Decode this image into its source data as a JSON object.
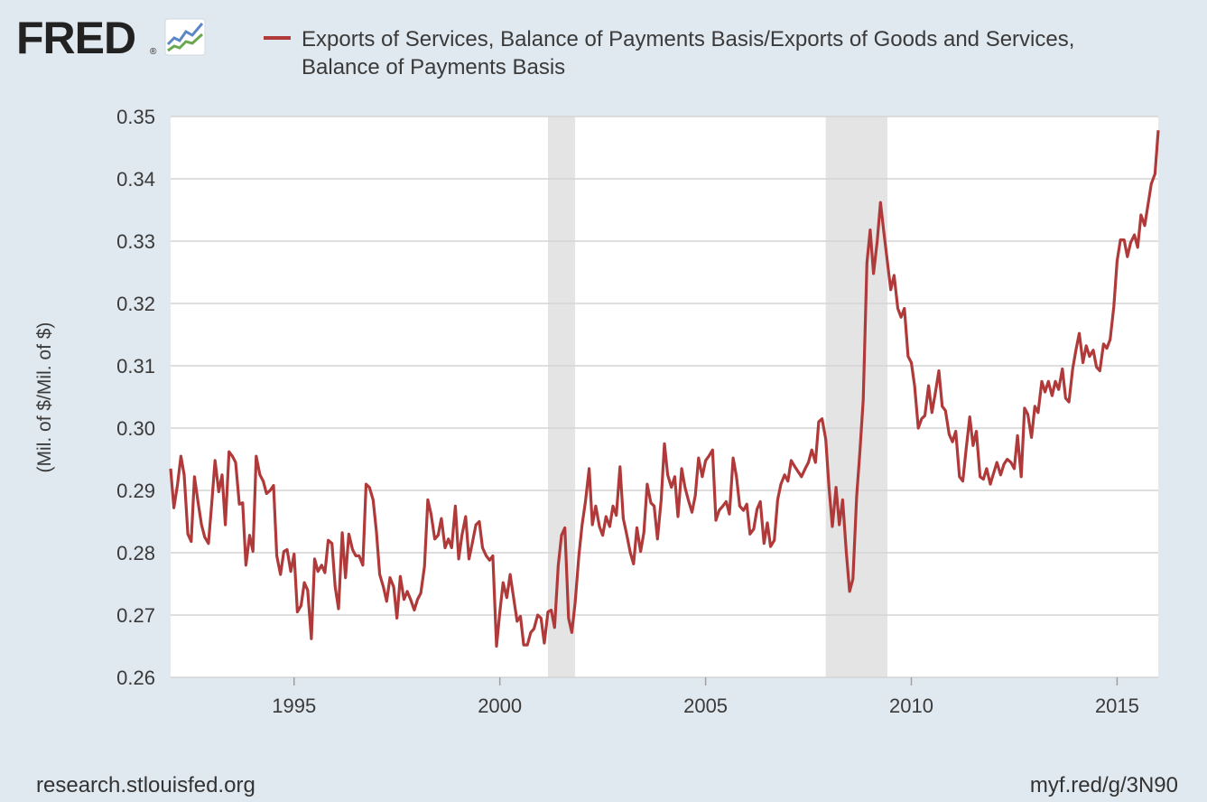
{
  "logo": {
    "text": "FRED",
    "registered": "®"
  },
  "footer": {
    "left": "research.stlouisfed.org",
    "right": "myf.red/g/3N90"
  },
  "colors": {
    "background": "#e1e9f0",
    "plot": "#ffffff",
    "line": "#b03a3a",
    "grid": "#d4d4d4",
    "recession": "#e4e4e4"
  },
  "chart_data": {
    "type": "line",
    "legend": {
      "line1": "Exports of Services, Balance of Payments Basis/Exports of Goods and Services,",
      "line2": "Balance of Payments Basis"
    },
    "ylabel": "(Mil. of $/Mil. of $)",
    "xlabel": "",
    "ylim": [
      0.26,
      0.35
    ],
    "xlim": [
      1992.0,
      2016.0
    ],
    "yticks": [
      "0.26",
      "0.27",
      "0.28",
      "0.29",
      "0.30",
      "0.31",
      "0.32",
      "0.33",
      "0.34",
      "0.35"
    ],
    "xticks": [
      "1995",
      "2000",
      "2005",
      "2010",
      "2015"
    ],
    "recessions": [
      [
        2001.17,
        2001.83
      ],
      [
        2007.92,
        2009.42
      ]
    ],
    "series": [
      {
        "name": "Exports of Services / Exports of Goods and Services",
        "points": [
          [
            1992.0,
            0.2935
          ],
          [
            1992.08,
            0.2872
          ],
          [
            1992.17,
            0.291
          ],
          [
            1992.25,
            0.2955
          ],
          [
            1992.33,
            0.2925
          ],
          [
            1992.42,
            0.283
          ],
          [
            1992.5,
            0.2818
          ],
          [
            1992.58,
            0.2922
          ],
          [
            1992.67,
            0.288
          ],
          [
            1992.75,
            0.2845
          ],
          [
            1992.83,
            0.2825
          ],
          [
            1992.92,
            0.2815
          ],
          [
            1993.0,
            0.288
          ],
          [
            1993.08,
            0.2948
          ],
          [
            1993.17,
            0.2898
          ],
          [
            1993.25,
            0.2925
          ],
          [
            1993.33,
            0.2845
          ],
          [
            1993.42,
            0.2962
          ],
          [
            1993.5,
            0.2955
          ],
          [
            1993.58,
            0.2945
          ],
          [
            1993.67,
            0.2878
          ],
          [
            1993.75,
            0.288
          ],
          [
            1993.83,
            0.278
          ],
          [
            1993.92,
            0.2828
          ],
          [
            1994.0,
            0.2802
          ],
          [
            1994.08,
            0.2955
          ],
          [
            1994.17,
            0.2925
          ],
          [
            1994.25,
            0.2915
          ],
          [
            1994.33,
            0.2895
          ],
          [
            1994.42,
            0.29
          ],
          [
            1994.5,
            0.2908
          ],
          [
            1994.58,
            0.2795
          ],
          [
            1994.67,
            0.2765
          ],
          [
            1994.75,
            0.2802
          ],
          [
            1994.83,
            0.2805
          ],
          [
            1994.92,
            0.277
          ],
          [
            1995.0,
            0.2798
          ],
          [
            1995.08,
            0.2705
          ],
          [
            1995.17,
            0.2715
          ],
          [
            1995.25,
            0.2752
          ],
          [
            1995.33,
            0.274
          ],
          [
            1995.42,
            0.2662
          ],
          [
            1995.5,
            0.279
          ],
          [
            1995.58,
            0.277
          ],
          [
            1995.67,
            0.278
          ],
          [
            1995.75,
            0.2768
          ],
          [
            1995.83,
            0.282
          ],
          [
            1995.92,
            0.2815
          ],
          [
            1996.0,
            0.2745
          ],
          [
            1996.08,
            0.271
          ],
          [
            1996.17,
            0.2832
          ],
          [
            1996.25,
            0.276
          ],
          [
            1996.33,
            0.283
          ],
          [
            1996.42,
            0.2805
          ],
          [
            1996.5,
            0.2795
          ],
          [
            1996.58,
            0.2795
          ],
          [
            1996.67,
            0.278
          ],
          [
            1996.75,
            0.291
          ],
          [
            1996.83,
            0.2905
          ],
          [
            1996.92,
            0.2885
          ],
          [
            1997.0,
            0.2835
          ],
          [
            1997.08,
            0.2765
          ],
          [
            1997.17,
            0.2745
          ],
          [
            1997.25,
            0.2722
          ],
          [
            1997.33,
            0.276
          ],
          [
            1997.42,
            0.2745
          ],
          [
            1997.5,
            0.2695
          ],
          [
            1997.58,
            0.2762
          ],
          [
            1997.67,
            0.2725
          ],
          [
            1997.75,
            0.2738
          ],
          [
            1997.83,
            0.2725
          ],
          [
            1997.92,
            0.2708
          ],
          [
            1998.0,
            0.2725
          ],
          [
            1998.08,
            0.2735
          ],
          [
            1998.17,
            0.2778
          ],
          [
            1998.25,
            0.2885
          ],
          [
            1998.33,
            0.2862
          ],
          [
            1998.42,
            0.2822
          ],
          [
            1998.5,
            0.2828
          ],
          [
            1998.58,
            0.2855
          ],
          [
            1998.67,
            0.2808
          ],
          [
            1998.75,
            0.2822
          ],
          [
            1998.83,
            0.2808
          ],
          [
            1998.92,
            0.2875
          ],
          [
            1999.0,
            0.279
          ],
          [
            1999.08,
            0.2828
          ],
          [
            1999.17,
            0.2858
          ],
          [
            1999.25,
            0.279
          ],
          [
            1999.33,
            0.2815
          ],
          [
            1999.42,
            0.2845
          ],
          [
            1999.5,
            0.285
          ],
          [
            1999.58,
            0.2808
          ],
          [
            1999.67,
            0.2795
          ],
          [
            1999.75,
            0.2788
          ],
          [
            1999.83,
            0.2795
          ],
          [
            1999.92,
            0.265
          ],
          [
            2000.0,
            0.2705
          ],
          [
            2000.08,
            0.2752
          ],
          [
            2000.17,
            0.2728
          ],
          [
            2000.25,
            0.2765
          ],
          [
            2000.33,
            0.273
          ],
          [
            2000.42,
            0.269
          ],
          [
            2000.5,
            0.2698
          ],
          [
            2000.58,
            0.2652
          ],
          [
            2000.67,
            0.2652
          ],
          [
            2000.75,
            0.2672
          ],
          [
            2000.83,
            0.2678
          ],
          [
            2000.92,
            0.27
          ],
          [
            2001.0,
            0.2695
          ],
          [
            2001.08,
            0.2655
          ],
          [
            2001.17,
            0.2705
          ],
          [
            2001.25,
            0.2708
          ],
          [
            2001.33,
            0.268
          ],
          [
            2001.42,
            0.278
          ],
          [
            2001.5,
            0.2828
          ],
          [
            2001.58,
            0.284
          ],
          [
            2001.67,
            0.2695
          ],
          [
            2001.75,
            0.2672
          ],
          [
            2001.83,
            0.272
          ],
          [
            2001.92,
            0.2795
          ],
          [
            2002.0,
            0.2845
          ],
          [
            2002.08,
            0.2882
          ],
          [
            2002.17,
            0.2935
          ],
          [
            2002.25,
            0.2845
          ],
          [
            2002.33,
            0.2875
          ],
          [
            2002.42,
            0.2842
          ],
          [
            2002.5,
            0.2828
          ],
          [
            2002.58,
            0.2858
          ],
          [
            2002.67,
            0.2842
          ],
          [
            2002.75,
            0.2875
          ],
          [
            2002.83,
            0.286
          ],
          [
            2002.92,
            0.2938
          ],
          [
            2003.0,
            0.2855
          ],
          [
            2003.08,
            0.283
          ],
          [
            2003.17,
            0.28
          ],
          [
            2003.25,
            0.2782
          ],
          [
            2003.33,
            0.284
          ],
          [
            2003.42,
            0.2802
          ],
          [
            2003.5,
            0.2832
          ],
          [
            2003.58,
            0.291
          ],
          [
            2003.67,
            0.288
          ],
          [
            2003.75,
            0.2875
          ],
          [
            2003.83,
            0.2822
          ],
          [
            2003.92,
            0.2885
          ],
          [
            2004.0,
            0.2975
          ],
          [
            2004.08,
            0.2925
          ],
          [
            2004.17,
            0.2905
          ],
          [
            2004.25,
            0.2922
          ],
          [
            2004.33,
            0.2858
          ],
          [
            2004.42,
            0.2935
          ],
          [
            2004.5,
            0.2905
          ],
          [
            2004.58,
            0.2885
          ],
          [
            2004.67,
            0.2865
          ],
          [
            2004.75,
            0.2892
          ],
          [
            2004.83,
            0.2952
          ],
          [
            2004.92,
            0.2922
          ],
          [
            2005.0,
            0.2948
          ],
          [
            2005.08,
            0.2955
          ],
          [
            2005.17,
            0.2965
          ],
          [
            2005.25,
            0.2852
          ],
          [
            2005.33,
            0.2868
          ],
          [
            2005.42,
            0.2875
          ],
          [
            2005.5,
            0.2882
          ],
          [
            2005.58,
            0.2862
          ],
          [
            2005.67,
            0.2952
          ],
          [
            2005.75,
            0.2922
          ],
          [
            2005.83,
            0.2875
          ],
          [
            2005.92,
            0.2868
          ],
          [
            2006.0,
            0.2878
          ],
          [
            2006.08,
            0.283
          ],
          [
            2006.17,
            0.2838
          ],
          [
            2006.25,
            0.287
          ],
          [
            2006.33,
            0.2882
          ],
          [
            2006.42,
            0.2815
          ],
          [
            2006.5,
            0.2848
          ],
          [
            2006.58,
            0.281
          ],
          [
            2006.67,
            0.282
          ],
          [
            2006.75,
            0.2885
          ],
          [
            2006.83,
            0.291
          ],
          [
            2006.92,
            0.2925
          ],
          [
            2007.0,
            0.2915
          ],
          [
            2007.08,
            0.2948
          ],
          [
            2007.17,
            0.2938
          ],
          [
            2007.25,
            0.293
          ],
          [
            2007.33,
            0.2922
          ],
          [
            2007.42,
            0.2935
          ],
          [
            2007.5,
            0.2945
          ],
          [
            2007.58,
            0.2965
          ],
          [
            2007.67,
            0.2945
          ],
          [
            2007.75,
            0.301
          ],
          [
            2007.83,
            0.3015
          ],
          [
            2007.92,
            0.2982
          ],
          [
            2008.0,
            0.2905
          ],
          [
            2008.08,
            0.2842
          ],
          [
            2008.17,
            0.2905
          ],
          [
            2008.25,
            0.2845
          ],
          [
            2008.33,
            0.2885
          ],
          [
            2008.42,
            0.28
          ],
          [
            2008.5,
            0.2738
          ],
          [
            2008.58,
            0.2758
          ],
          [
            2008.67,
            0.289
          ],
          [
            2008.75,
            0.2962
          ],
          [
            2008.83,
            0.3045
          ],
          [
            2008.92,
            0.3265
          ],
          [
            2009.0,
            0.3318
          ],
          [
            2009.08,
            0.3248
          ],
          [
            2009.17,
            0.33
          ],
          [
            2009.25,
            0.3362
          ],
          [
            2009.33,
            0.3315
          ],
          [
            2009.42,
            0.3265
          ],
          [
            2009.5,
            0.3222
          ],
          [
            2009.58,
            0.3245
          ],
          [
            2009.67,
            0.3192
          ],
          [
            2009.75,
            0.3178
          ],
          [
            2009.83,
            0.3192
          ],
          [
            2009.92,
            0.3115
          ],
          [
            2010.0,
            0.3105
          ],
          [
            2010.08,
            0.3068
          ],
          [
            2010.17,
            0.3
          ],
          [
            2010.25,
            0.3015
          ],
          [
            2010.33,
            0.302
          ],
          [
            2010.42,
            0.3068
          ],
          [
            2010.5,
            0.3025
          ],
          [
            2010.58,
            0.3055
          ],
          [
            2010.67,
            0.3092
          ],
          [
            2010.75,
            0.3035
          ],
          [
            2010.83,
            0.3028
          ],
          [
            2010.92,
            0.299
          ],
          [
            2011.0,
            0.2978
          ],
          [
            2011.08,
            0.2995
          ],
          [
            2011.17,
            0.2922
          ],
          [
            2011.25,
            0.2915
          ],
          [
            2011.33,
            0.2965
          ],
          [
            2011.42,
            0.3018
          ],
          [
            2011.5,
            0.2972
          ],
          [
            2011.58,
            0.2995
          ],
          [
            2011.67,
            0.2922
          ],
          [
            2011.75,
            0.2918
          ],
          [
            2011.83,
            0.2935
          ],
          [
            2011.92,
            0.291
          ],
          [
            2012.0,
            0.2928
          ],
          [
            2012.08,
            0.2945
          ],
          [
            2012.17,
            0.2925
          ],
          [
            2012.25,
            0.2942
          ],
          [
            2012.33,
            0.295
          ],
          [
            2012.42,
            0.2945
          ],
          [
            2012.5,
            0.2935
          ],
          [
            2012.58,
            0.2988
          ],
          [
            2012.67,
            0.2922
          ],
          [
            2012.75,
            0.3032
          ],
          [
            2012.83,
            0.3022
          ],
          [
            2012.92,
            0.2985
          ],
          [
            2013.0,
            0.3035
          ],
          [
            2013.08,
            0.3025
          ],
          [
            2013.17,
            0.3075
          ],
          [
            2013.25,
            0.3058
          ],
          [
            2013.33,
            0.3075
          ],
          [
            2013.42,
            0.3052
          ],
          [
            2013.5,
            0.3075
          ],
          [
            2013.58,
            0.3062
          ],
          [
            2013.67,
            0.3095
          ],
          [
            2013.75,
            0.3048
          ],
          [
            2013.83,
            0.3042
          ],
          [
            2013.92,
            0.3095
          ],
          [
            2014.0,
            0.3125
          ],
          [
            2014.08,
            0.3152
          ],
          [
            2014.17,
            0.3105
          ],
          [
            2014.25,
            0.3132
          ],
          [
            2014.33,
            0.3115
          ],
          [
            2014.42,
            0.3125
          ],
          [
            2014.5,
            0.3098
          ],
          [
            2014.58,
            0.3092
          ],
          [
            2014.67,
            0.3135
          ],
          [
            2014.75,
            0.3128
          ],
          [
            2014.83,
            0.3142
          ],
          [
            2014.92,
            0.3195
          ],
          [
            2015.0,
            0.3268
          ],
          [
            2015.08,
            0.3302
          ],
          [
            2015.17,
            0.3302
          ],
          [
            2015.25,
            0.3275
          ],
          [
            2015.33,
            0.3298
          ],
          [
            2015.42,
            0.331
          ],
          [
            2015.5,
            0.329
          ],
          [
            2015.58,
            0.3342
          ],
          [
            2015.67,
            0.3325
          ],
          [
            2015.75,
            0.3358
          ],
          [
            2015.83,
            0.3392
          ],
          [
            2015.92,
            0.3408
          ],
          [
            2016.0,
            0.3478
          ]
        ]
      }
    ]
  }
}
